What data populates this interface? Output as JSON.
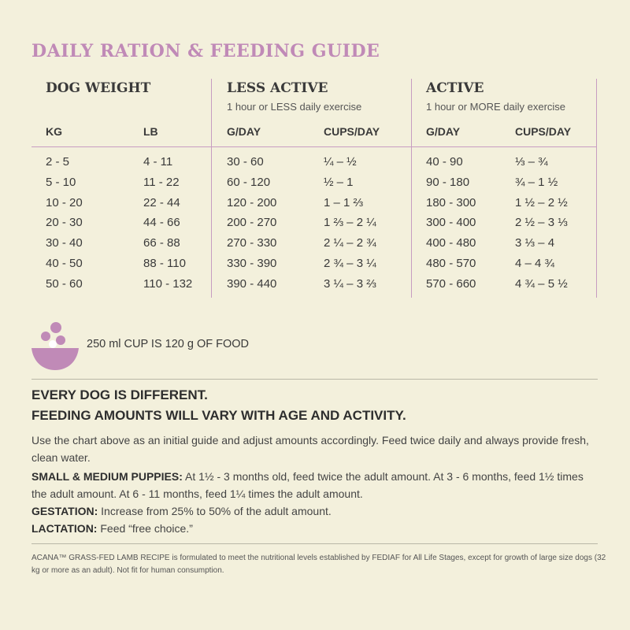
{
  "title": "DAILY RATION & FEEDING GUIDE",
  "groups": {
    "dog_weight": {
      "title": "DOG WEIGHT"
    },
    "less_active": {
      "title": "LESS ACTIVE",
      "subtitle": "1 hour or LESS daily exercise"
    },
    "active": {
      "title": "ACTIVE",
      "subtitle": "1 hour or MORE daily exercise"
    }
  },
  "columns": {
    "kg": "KG",
    "lb": "LB",
    "la_g": "G/DAY",
    "la_cups": "CUPS/DAY",
    "a_g": "G/DAY",
    "a_cups": "CUPS/DAY"
  },
  "rows": [
    {
      "kg": "2 - 5",
      "lb": "4 - 11",
      "la_g": "30 - 60",
      "la_cups": "¼ – ½",
      "a_g": "40 - 90",
      "a_cups": "⅓ – ¾"
    },
    {
      "kg": "5 - 10",
      "lb": "11 - 22",
      "la_g": "60 - 120",
      "la_cups": "½ – 1",
      "a_g": "90 - 180",
      "a_cups": "¾ – 1 ½"
    },
    {
      "kg": "10 - 20",
      "lb": "22 - 44",
      "la_g": "120 - 200",
      "la_cups": "1 – 1 ⅔",
      "a_g": "180 - 300",
      "a_cups": "1 ½ – 2 ½"
    },
    {
      "kg": "20 - 30",
      "lb": "44 - 66",
      "la_g": "200 - 270",
      "la_cups": "1 ⅔ – 2 ¼",
      "a_g": "300 - 400",
      "a_cups": "2 ½  – 3 ⅓"
    },
    {
      "kg": "30 - 40",
      "lb": "66 - 88",
      "la_g": "270 - 330",
      "la_cups": "2 ¼ – 2 ¾",
      "a_g": "400 - 480",
      "a_cups": "3 ⅓ – 4"
    },
    {
      "kg": "40 - 50",
      "lb": "88 - 110",
      "la_g": "330 - 390",
      "la_cups": "2 ¾ – 3 ¼",
      "a_g": "480 - 570",
      "a_cups": "4 – 4 ¾"
    },
    {
      "kg": "50 - 60",
      "lb": "110 - 132",
      "la_g": "390 - 440",
      "la_cups": "3 ¼ – 3 ⅔",
      "a_g": "570 - 660",
      "a_cups": "4 ¾ – 5 ½"
    }
  ],
  "cup_note": "250 ml CUP IS 120 g OF FOOD",
  "headline1": "EVERY DOG IS DIFFERENT.",
  "headline2": "FEEDING AMOUNTS WILL VARY WITH AGE AND ACTIVITY.",
  "intro": "Use the chart above as an initial guide and adjust amounts accordingly. Feed twice daily and always provide fresh, clean water.",
  "puppies": {
    "label": "SMALL & MEDIUM PUPPIES:",
    "text": " At 1½ - 3 months old, feed twice the adult amount. At 3 - 6 months, feed 1½ times the adult amount. At 6 - 11 months, feed 1¼ times the adult amount."
  },
  "gestation": {
    "label": "GESTATION:",
    "text": " Increase from 25% to 50% of the adult amount."
  },
  "lactation": {
    "label": "LACTATION:",
    "text": " Feed “free choice.”"
  },
  "fine_print": "ACANA™ GRASS-FED LAMB RECIPE is formulated to meet the nutritional levels established by FEDIAF for All Life Stages, except for growth of large size dogs (32 kg or more as an adult). Not fit for human consumption.",
  "colors": {
    "accent": "#c08ab7",
    "rule": "#c79cc1",
    "background": "#f3f0dc"
  },
  "icons": {
    "bowl": "food-bowl-icon"
  }
}
